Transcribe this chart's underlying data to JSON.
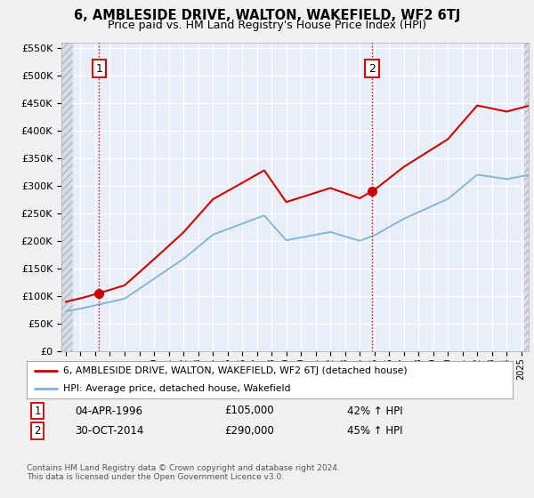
{
  "title": "6, AMBLESIDE DRIVE, WALTON, WAKEFIELD, WF2 6TJ",
  "subtitle": "Price paid vs. HM Land Registry's House Price Index (HPI)",
  "ylim": [
    0,
    560000
  ],
  "yticks": [
    0,
    50000,
    100000,
    150000,
    200000,
    250000,
    300000,
    350000,
    400000,
    450000,
    500000,
    550000
  ],
  "ytick_labels": [
    "£0",
    "£50K",
    "£100K",
    "£150K",
    "£200K",
    "£250K",
    "£300K",
    "£350K",
    "£400K",
    "£450K",
    "£500K",
    "£550K"
  ],
  "background_color": "#f0f0f0",
  "plot_bg_color": "#e8eef8",
  "hatch_bg_color": "#d8dde8",
  "grid_color": "#ffffff",
  "sale1_date": 1996.26,
  "sale1_price": 105000,
  "sale1_label": "1",
  "sale2_date": 2014.83,
  "sale2_price": 290000,
  "sale2_label": "2",
  "legend_line1": "6, AMBLESIDE DRIVE, WALTON, WAKEFIELD, WF2 6TJ (detached house)",
  "legend_line2": "HPI: Average price, detached house, Wakefield",
  "footer": "Contains HM Land Registry data © Crown copyright and database right 2024.\nThis data is licensed under the Open Government Licence v3.0.",
  "line_color_red": "#cc0000",
  "line_color_blue": "#7fb3d3",
  "marker_color": "#cc0000",
  "vline_color": "#cc0000",
  "box_color": "#cc0000",
  "xmin": 1994,
  "xmax": 2025,
  "sale1_info_date": "04-APR-1996",
  "sale1_info_price": "£105,000",
  "sale1_info_hpi": "42% ↑ HPI",
  "sale2_info_date": "30-OCT-2014",
  "sale2_info_price": "£290,000",
  "sale2_info_hpi": "45% ↑ HPI"
}
